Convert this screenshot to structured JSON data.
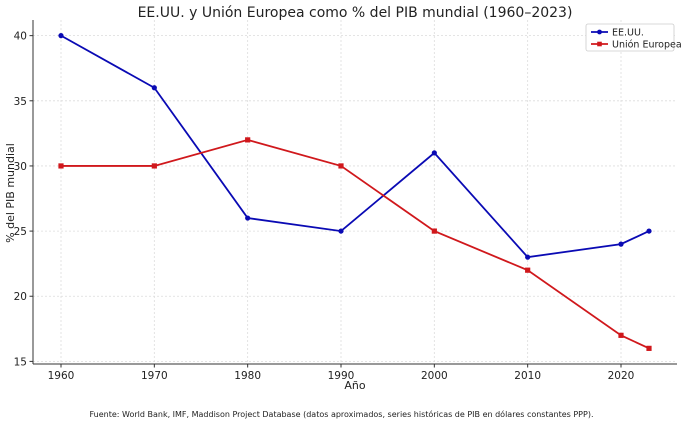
{
  "chart_data": {
    "type": "line",
    "title": "EE.UU. y Unión Europea como % del PIB mundial (1960–2023)",
    "xlabel": "Año",
    "ylabel": "% del PIB mundial",
    "xlim": [
      1957,
      2026
    ],
    "ylim": [
      14.8,
      41.2
    ],
    "xticks": [
      1960,
      1970,
      1980,
      1990,
      2000,
      2010,
      2020
    ],
    "yticks": [
      15,
      20,
      25,
      30,
      35,
      40
    ],
    "grid": true,
    "legend_position": "top-right",
    "x": [
      1960,
      1970,
      1980,
      1990,
      2000,
      2010,
      2020,
      2023
    ],
    "series": [
      {
        "name": "EE.UU.",
        "color": "#0a0ab4",
        "marker": "circle",
        "values": [
          40,
          36,
          26,
          25,
          31,
          23,
          24,
          25
        ]
      },
      {
        "name": "Unión Europea",
        "color": "#d0181c",
        "marker": "square",
        "values": [
          30,
          30,
          32,
          30,
          25,
          22,
          17,
          16
        ]
      }
    ]
  },
  "source_note": "Fuente: World Bank, IMF, Maddison Project Database (datos aproximados, series históricas de PIB en dólares constantes PPP)."
}
